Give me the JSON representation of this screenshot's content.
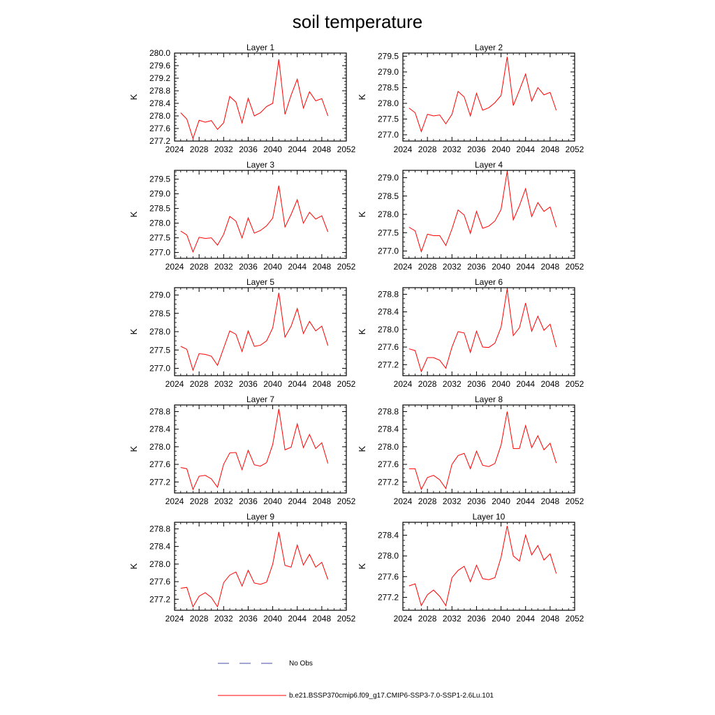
{
  "figure": {
    "title": "soil temperature"
  },
  "legend": {
    "entries": [
      {
        "label": "No Obs",
        "style": "dashed",
        "color": "#4a4aa0"
      },
      {
        "label": "b.e21.BSSP370cmip6.f09_g17.CMIP6-SSP3-7.0-SSP1-2.6Lu.101",
        "style": "solid",
        "color": "#ff0000"
      }
    ]
  },
  "chart_data": [
    {
      "type": "line",
      "title": "Layer 1",
      "ylabel": "K",
      "xlim": [
        2024,
        2052
      ],
      "ylim": [
        277.2,
        280.0
      ],
      "xticks": [
        2024,
        2028,
        2032,
        2036,
        2040,
        2044,
        2048,
        2052
      ],
      "yticks": [
        "277.2",
        "277.6",
        "278.0",
        "278.4",
        "278.8",
        "279.2",
        "279.6",
        "280.0"
      ],
      "x": [
        2025,
        2026,
        2027,
        2028,
        2029,
        2030,
        2031,
        2032,
        2033,
        2034,
        2035,
        2036,
        2037,
        2038,
        2039,
        2040,
        2041,
        2042,
        2043,
        2044,
        2045,
        2046,
        2047,
        2048,
        2049
      ],
      "series": [
        {
          "color": "#ff0000",
          "values": [
            278.1,
            277.9,
            277.28,
            277.86,
            277.8,
            277.85,
            277.57,
            277.78,
            278.62,
            278.44,
            277.78,
            278.56,
            278.0,
            278.1,
            278.3,
            278.4,
            279.8,
            278.05,
            278.66,
            279.17,
            278.25,
            278.77,
            278.48,
            278.55,
            278.0
          ]
        }
      ]
    },
    {
      "type": "line",
      "title": "Layer 2",
      "ylabel": "K",
      "xlim": [
        2024,
        2052
      ],
      "ylim": [
        276.8,
        279.6
      ],
      "xticks": [
        2024,
        2028,
        2032,
        2036,
        2040,
        2044,
        2048,
        2052
      ],
      "yticks": [
        "277.0",
        "277.5",
        "278.0",
        "278.5",
        "279.0",
        "279.5"
      ],
      "x": [
        2025,
        2026,
        2027,
        2028,
        2029,
        2030,
        2031,
        2032,
        2033,
        2034,
        2035,
        2036,
        2037,
        2038,
        2039,
        2040,
        2041,
        2042,
        2043,
        2044,
        2045,
        2046,
        2047,
        2048,
        2049
      ],
      "series": [
        {
          "color": "#ff0000",
          "values": [
            277.85,
            277.7,
            277.1,
            277.65,
            277.6,
            277.63,
            277.35,
            277.65,
            278.38,
            278.2,
            277.6,
            278.32,
            277.78,
            277.86,
            278.02,
            278.25,
            279.48,
            277.93,
            278.42,
            278.93,
            278.07,
            278.5,
            278.27,
            278.35,
            277.78
          ]
        }
      ]
    },
    {
      "type": "line",
      "title": "Layer 3",
      "ylabel": "K",
      "xlim": [
        2024,
        2052
      ],
      "ylim": [
        276.8,
        279.8
      ],
      "xticks": [
        2024,
        2028,
        2032,
        2036,
        2040,
        2044,
        2048,
        2052
      ],
      "yticks": [
        "277.0",
        "277.5",
        "278.0",
        "278.5",
        "279.0",
        "279.5"
      ],
      "x": [
        2025,
        2026,
        2027,
        2028,
        2029,
        2030,
        2031,
        2032,
        2033,
        2034,
        2035,
        2036,
        2037,
        2038,
        2039,
        2040,
        2041,
        2042,
        2043,
        2044,
        2045,
        2046,
        2047,
        2048,
        2049
      ],
      "series": [
        {
          "color": "#ff0000",
          "values": [
            277.73,
            277.6,
            277.02,
            277.52,
            277.48,
            277.5,
            277.25,
            277.62,
            278.23,
            278.07,
            277.5,
            278.18,
            277.66,
            277.75,
            277.91,
            278.17,
            279.28,
            277.87,
            278.3,
            278.8,
            278.0,
            278.37,
            278.14,
            278.25,
            277.7
          ]
        }
      ]
    },
    {
      "type": "line",
      "title": "Layer 4",
      "ylabel": "K",
      "xlim": [
        2024,
        2052
      ],
      "ylim": [
        276.8,
        279.2
      ],
      "xticks": [
        2024,
        2028,
        2032,
        2036,
        2040,
        2044,
        2048,
        2052
      ],
      "yticks": [
        "277.0",
        "277.5",
        "278.0",
        "278.5",
        "279.0"
      ],
      "x": [
        2025,
        2026,
        2027,
        2028,
        2029,
        2030,
        2031,
        2032,
        2033,
        2034,
        2035,
        2036,
        2037,
        2038,
        2039,
        2040,
        2041,
        2042,
        2043,
        2044,
        2045,
        2046,
        2047,
        2048,
        2049
      ],
      "series": [
        {
          "color": "#ff0000",
          "values": [
            277.65,
            277.55,
            276.98,
            277.46,
            277.42,
            277.42,
            277.15,
            277.6,
            278.12,
            277.98,
            277.48,
            278.08,
            277.62,
            277.68,
            277.82,
            278.13,
            279.17,
            277.85,
            278.24,
            278.7,
            277.94,
            278.32,
            278.08,
            278.2,
            277.65
          ]
        }
      ]
    },
    {
      "type": "line",
      "title": "Layer 5",
      "ylabel": "K",
      "xlim": [
        2024,
        2052
      ],
      "ylim": [
        276.8,
        279.2
      ],
      "xticks": [
        2024,
        2028,
        2032,
        2036,
        2040,
        2044,
        2048,
        2052
      ],
      "yticks": [
        "277.0",
        "277.5",
        "278.0",
        "278.5",
        "279.0"
      ],
      "x": [
        2025,
        2026,
        2027,
        2028,
        2029,
        2030,
        2031,
        2032,
        2033,
        2034,
        2035,
        2036,
        2037,
        2038,
        2039,
        2040,
        2041,
        2042,
        2043,
        2044,
        2045,
        2046,
        2047,
        2048,
        2049
      ],
      "series": [
        {
          "color": "#ff0000",
          "values": [
            277.6,
            277.52,
            276.95,
            277.4,
            277.38,
            277.33,
            277.08,
            277.55,
            278.02,
            277.93,
            277.46,
            278.02,
            277.6,
            277.63,
            277.75,
            278.1,
            279.06,
            277.85,
            278.15,
            278.63,
            277.95,
            278.28,
            278.02,
            278.15,
            277.62
          ]
        }
      ]
    },
    {
      "type": "line",
      "title": "Layer 6",
      "ylabel": "K",
      "xlim": [
        2024,
        2052
      ],
      "ylim": [
        276.95,
        278.95
      ],
      "xticks": [
        2024,
        2028,
        2032,
        2036,
        2040,
        2044,
        2048,
        2052
      ],
      "yticks": [
        "277.2",
        "277.6",
        "278.0",
        "278.4",
        "278.8"
      ],
      "x": [
        2025,
        2026,
        2027,
        2028,
        2029,
        2030,
        2031,
        2032,
        2033,
        2034,
        2035,
        2036,
        2037,
        2038,
        2039,
        2040,
        2041,
        2042,
        2043,
        2044,
        2045,
        2046,
        2047,
        2048,
        2049
      ],
      "series": [
        {
          "color": "#ff0000",
          "values": [
            277.56,
            277.52,
            277.04,
            277.36,
            277.36,
            277.3,
            277.12,
            277.6,
            277.95,
            277.92,
            277.48,
            277.96,
            277.6,
            277.59,
            277.69,
            278.05,
            278.92,
            277.86,
            278.04,
            278.6,
            277.96,
            278.3,
            277.98,
            278.12,
            277.6
          ]
        }
      ]
    },
    {
      "type": "line",
      "title": "Layer 7",
      "ylabel": "K",
      "xlim": [
        2024,
        2052
      ],
      "ylim": [
        276.95,
        278.95
      ],
      "xticks": [
        2024,
        2028,
        2032,
        2036,
        2040,
        2044,
        2048,
        2052
      ],
      "yticks": [
        "277.2",
        "277.6",
        "278.0",
        "278.4",
        "278.8"
      ],
      "x": [
        2025,
        2026,
        2027,
        2028,
        2029,
        2030,
        2031,
        2032,
        2033,
        2034,
        2035,
        2036,
        2037,
        2038,
        2039,
        2040,
        2041,
        2042,
        2043,
        2044,
        2045,
        2046,
        2047,
        2048,
        2049
      ],
      "series": [
        {
          "color": "#ff0000",
          "values": [
            277.53,
            277.5,
            277.03,
            277.33,
            277.35,
            277.27,
            277.08,
            277.6,
            277.86,
            277.87,
            277.48,
            277.92,
            277.59,
            277.56,
            277.64,
            278.05,
            278.86,
            277.93,
            277.99,
            278.52,
            277.98,
            278.28,
            277.96,
            278.09,
            277.62
          ]
        }
      ]
    },
    {
      "type": "line",
      "title": "Layer 8",
      "ylabel": "K",
      "xlim": [
        2024,
        2052
      ],
      "ylim": [
        276.95,
        278.95
      ],
      "xticks": [
        2024,
        2028,
        2032,
        2036,
        2040,
        2044,
        2048,
        2052
      ],
      "yticks": [
        "277.2",
        "277.6",
        "278.0",
        "278.4",
        "278.8"
      ],
      "x": [
        2025,
        2026,
        2027,
        2028,
        2029,
        2030,
        2031,
        2032,
        2033,
        2034,
        2035,
        2036,
        2037,
        2038,
        2039,
        2040,
        2041,
        2042,
        2043,
        2044,
        2045,
        2046,
        2047,
        2048,
        2049
      ],
      "series": [
        {
          "color": "#ff0000",
          "values": [
            277.5,
            277.5,
            277.03,
            277.3,
            277.35,
            277.25,
            277.05,
            277.6,
            277.8,
            277.85,
            277.5,
            277.9,
            277.58,
            277.55,
            277.62,
            278.04,
            278.8,
            277.96,
            277.96,
            278.48,
            277.98,
            278.25,
            277.93,
            278.08,
            277.63
          ]
        }
      ]
    },
    {
      "type": "line",
      "title": "Layer 9",
      "ylabel": "K",
      "xlim": [
        2024,
        2052
      ],
      "ylim": [
        276.95,
        278.95
      ],
      "xticks": [
        2024,
        2028,
        2032,
        2036,
        2040,
        2044,
        2048,
        2052
      ],
      "yticks": [
        "277.2",
        "277.6",
        "278.0",
        "278.4",
        "278.8"
      ],
      "x": [
        2025,
        2026,
        2027,
        2028,
        2029,
        2030,
        2031,
        2032,
        2033,
        2034,
        2035,
        2036,
        2037,
        2038,
        2039,
        2040,
        2041,
        2042,
        2043,
        2044,
        2045,
        2046,
        2047,
        2048,
        2049
      ],
      "series": [
        {
          "color": "#ff0000",
          "values": [
            277.45,
            277.47,
            277.03,
            277.27,
            277.35,
            277.24,
            277.03,
            277.58,
            277.75,
            277.82,
            277.5,
            277.86,
            277.57,
            277.54,
            277.59,
            278.0,
            278.73,
            277.97,
            277.93,
            278.43,
            277.98,
            278.22,
            277.93,
            278.04,
            277.65
          ]
        }
      ]
    },
    {
      "type": "line",
      "title": "Layer 10",
      "ylabel": "K",
      "xlim": [
        2024,
        2052
      ],
      "ylim": [
        276.95,
        278.65
      ],
      "xticks": [
        2024,
        2028,
        2032,
        2036,
        2040,
        2044,
        2048,
        2052
      ],
      "yticks": [
        "277.2",
        "277.6",
        "278.0",
        "278.4"
      ],
      "x": [
        2025,
        2026,
        2027,
        2028,
        2029,
        2030,
        2031,
        2032,
        2033,
        2034,
        2035,
        2036,
        2037,
        2038,
        2039,
        2040,
        2041,
        2042,
        2043,
        2044,
        2045,
        2046,
        2047,
        2048,
        2049
      ],
      "series": [
        {
          "color": "#ff0000",
          "values": [
            277.42,
            277.46,
            277.04,
            277.25,
            277.34,
            277.22,
            277.04,
            277.58,
            277.72,
            277.8,
            277.5,
            277.82,
            277.56,
            277.54,
            277.58,
            277.97,
            278.58,
            278.0,
            277.9,
            278.4,
            278.02,
            278.2,
            277.92,
            278.04,
            277.66
          ]
        }
      ]
    }
  ]
}
